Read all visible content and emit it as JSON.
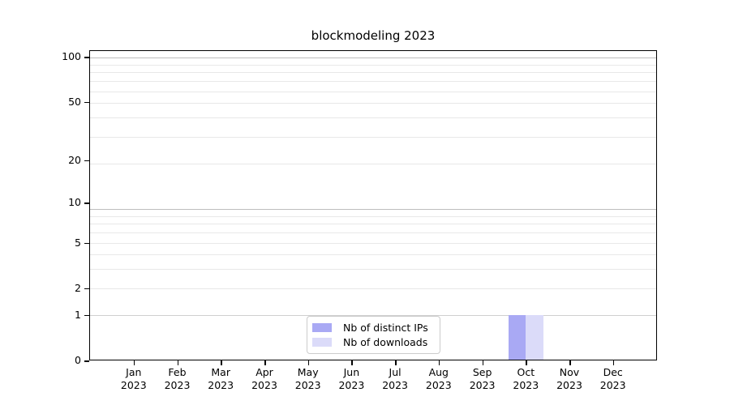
{
  "figure": {
    "background": "#ffffff"
  },
  "chart_data": {
    "type": "bar",
    "title": "blockmodeling 2023",
    "x_axis": {
      "categories": [
        {
          "month": "Jan",
          "year": "2023"
        },
        {
          "month": "Feb",
          "year": "2023"
        },
        {
          "month": "Mar",
          "year": "2023"
        },
        {
          "month": "Apr",
          "year": "2023"
        },
        {
          "month": "May",
          "year": "2023"
        },
        {
          "month": "Jun",
          "year": "2023"
        },
        {
          "month": "Jul",
          "year": "2023"
        },
        {
          "month": "Aug",
          "year": "2023"
        },
        {
          "month": "Sep",
          "year": "2023"
        },
        {
          "month": "Oct",
          "year": "2023"
        },
        {
          "month": "Nov",
          "year": "2023"
        },
        {
          "month": "Dec",
          "year": "2023"
        }
      ]
    },
    "y_axis": {
      "scale": "log1p",
      "tick_labels": [
        "100",
        "50",
        "20",
        "10",
        "5",
        "2",
        "1",
        "0"
      ],
      "tick_values": [
        100,
        50,
        20,
        10,
        5,
        2,
        1,
        0
      ],
      "range": [
        0,
        111
      ],
      "grid": true
    },
    "series": [
      {
        "name": "Nb of distinct IPs",
        "color": "#a9a9f4",
        "values": [
          0,
          0,
          0,
          0,
          0,
          0,
          0,
          0,
          0,
          1,
          0,
          0
        ]
      },
      {
        "name": "Nb of downloads",
        "color": "#dbdbf9",
        "values": [
          0,
          0,
          0,
          0,
          0,
          0,
          0,
          0,
          0,
          1,
          0,
          0
        ]
      }
    ],
    "legend": {
      "position": "lower center"
    },
    "grid_colors": {
      "major": "#bdbdbd",
      "minor": "#e8e8e8",
      "unit_line": "#cfcfcf"
    }
  }
}
